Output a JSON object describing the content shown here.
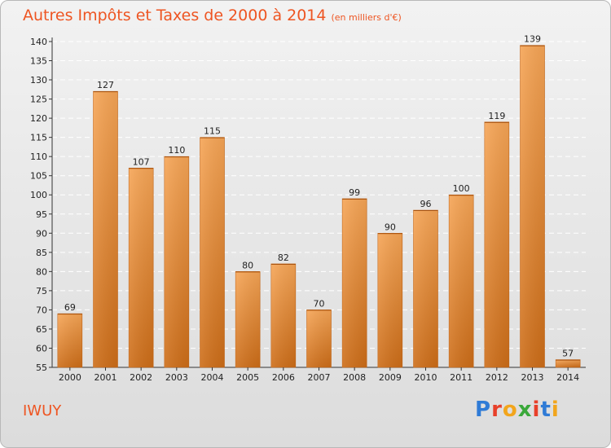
{
  "title": "Autres Impôts et Taxes de 2000 à 2014",
  "unit_note": "(en milliers d'€)",
  "place": "IWUY",
  "brand": "Proxiti",
  "colors": {
    "title": "#ee5522",
    "bar_light": "#f6a556",
    "bar_dark": "#cd6d18"
  },
  "chart_data": {
    "type": "bar",
    "title": "Autres Impôts et Taxes de 2000 à 2014",
    "subtitle": "(en milliers d'€)",
    "categories": [
      "2000",
      "2001",
      "2002",
      "2003",
      "2004",
      "2005",
      "2006",
      "2007",
      "2008",
      "2009",
      "2010",
      "2011",
      "2012",
      "2013",
      "2014"
    ],
    "values": [
      69,
      127,
      107,
      110,
      115,
      80,
      82,
      70,
      99,
      90,
      96,
      100,
      119,
      139,
      57
    ],
    "ylim": [
      55,
      140
    ],
    "yticks": [
      55,
      60,
      65,
      70,
      75,
      80,
      85,
      90,
      95,
      100,
      105,
      110,
      115,
      120,
      125,
      130,
      135,
      140
    ],
    "grid": true,
    "legend": "none"
  }
}
